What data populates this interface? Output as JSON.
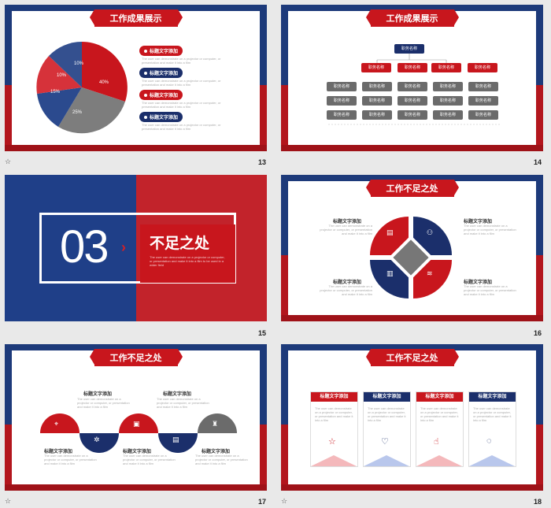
{
  "common": {
    "item_label": "标题文字添加",
    "body_text": "The user can demonstrate on a projector or computer, or presentation and make it into a film",
    "star": "☆"
  },
  "slide13": {
    "number": "13",
    "title": "工作成果展示",
    "pie_labels": [
      "10%",
      "10%",
      "15%",
      "25%",
      "40%"
    ],
    "pills": [
      "标题文字添加",
      "标题文字添加",
      "标题文字添加",
      "标题文字添加"
    ]
  },
  "slide14": {
    "number": "14",
    "title": "工作成果展示",
    "root": "职务名称",
    "level2": [
      "职务名称",
      "职务名称",
      "职务名称",
      "职务名称"
    ],
    "grid_label": "职务名称"
  },
  "slide15": {
    "number": "15",
    "section_number": "03",
    "section_title": "不足之处",
    "section_text": "The user can demonstrate on a projector or computer, or presentation and make it into a film to be used in a wider field"
  },
  "slide16": {
    "number": "16",
    "title": "工作不足之处",
    "labels": [
      "标题文字添加",
      "标题文字添加",
      "标题文字添加",
      "标题文字添加"
    ]
  },
  "slide17": {
    "number": "17",
    "title": "工作不足之处",
    "labels": [
      "标题文字添加",
      "标题文字添加",
      "标题文字添加",
      "标题文字添加",
      "标题文字添加"
    ]
  },
  "slide18": {
    "number": "18",
    "title": "工作不足之处",
    "cards": [
      "标题文字添加",
      "标题文字添加",
      "标题文字添加",
      "标题文字添加"
    ]
  },
  "colors": {
    "red": "#c8161d",
    "blue": "#1b2f6b",
    "gray": "#777777"
  }
}
